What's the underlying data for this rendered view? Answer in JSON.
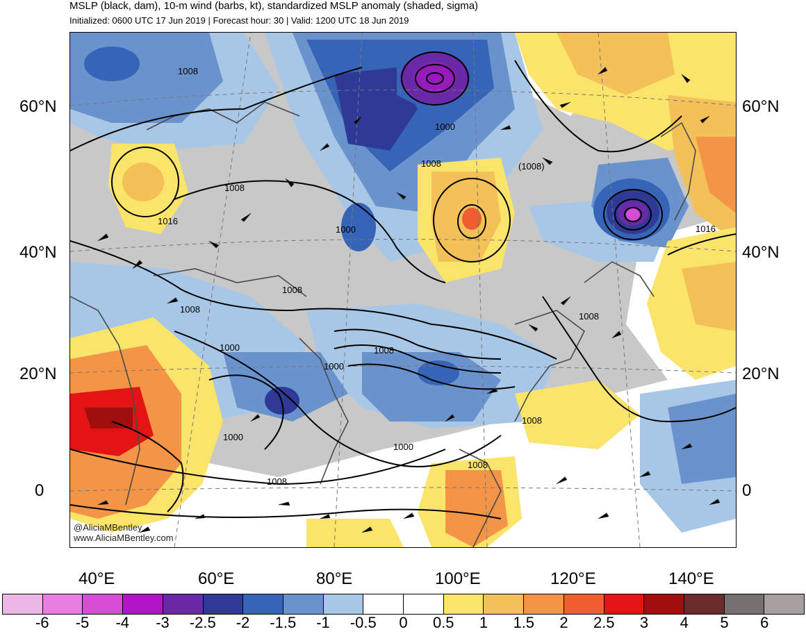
{
  "header": {
    "title": "MSLP (black, dam), 10-m wind (barbs, kt), standardized MSLP anomaly (shaded, sigma)",
    "subtitle": "Initialized: 0600 UTC 17 Jun 2019 | Forecast hour: 30 | Valid: 1200 UTC 18 Jun 2019"
  },
  "axes": {
    "lat_labels": [
      "60°N",
      "40°N",
      "20°N",
      "0"
    ],
    "lon_labels": [
      "40°E",
      "60°E",
      "80°E",
      "100°E",
      "120°E",
      "140°E"
    ]
  },
  "contour_labels": [
    "1008",
    "1008",
    "1008",
    "1008",
    "1008",
    "1008",
    "1008",
    "1008",
    "1008",
    "1008",
    "1000",
    "1000",
    "1000",
    "1000",
    "1000",
    "1000",
    "1016",
    "1016",
    "(1008)"
  ],
  "credits": {
    "twitter": "@AliciaMBentley",
    "website": "www.AliciaMBentley.com"
  },
  "colorbar": {
    "labels": [
      "-6",
      "-5",
      "-4",
      "-3",
      "-2.5",
      "-2",
      "-1.5",
      "-1",
      "-0.5",
      "0",
      "0.5",
      "1",
      "1.5",
      "2",
      "2.5",
      "3",
      "4",
      "5",
      "6"
    ],
    "colors": [
      "#eab6e6",
      "#e87ee0",
      "#d74cd6",
      "#b214c8",
      "#6a2aa8",
      "#2e3a96",
      "#3665b8",
      "#6a92cc",
      "#a8c6e6",
      "#ffffff",
      "#ffffff",
      "#fbe46a",
      "#f4c058",
      "#f39446",
      "#ee5e30",
      "#e41414",
      "#a00e0e",
      "#6a2c2c",
      "#767070",
      "#a8a0a0"
    ]
  }
}
